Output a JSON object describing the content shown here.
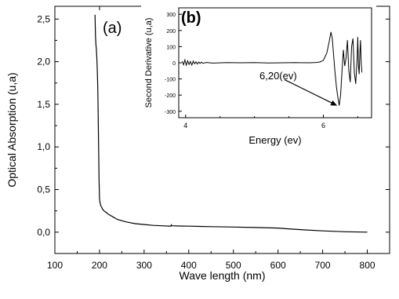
{
  "chart_data": [
    {
      "panel_label": "(a)",
      "type": "line",
      "xlabel": "Wave length  (nm)",
      "ylabel": "Optical Absorption (u,a)",
      "xlim": [
        100,
        850
      ],
      "ylim": [
        -0.25,
        2.65
      ],
      "xticks": [
        100,
        200,
        300,
        400,
        500,
        600,
        700,
        800
      ],
      "xtick_labels": [
        "100",
        "200",
        "300",
        "400",
        "500",
        "600",
        "700",
        "800"
      ],
      "yticks": [
        0.0,
        0.5,
        1.0,
        1.5,
        2.0,
        2.5
      ],
      "ytick_labels": [
        "0,0",
        "0,5",
        "1,0",
        "1,5",
        "2,0",
        "2,5"
      ],
      "series": [
        {
          "color": "#000000",
          "x": [
            190,
            191,
            192,
            193,
            194,
            195,
            196,
            197,
            198,
            199,
            200,
            201,
            202,
            203,
            204,
            205,
            207,
            210,
            215,
            220,
            230,
            240,
            260,
            280,
            300,
            320,
            340,
            360,
            361,
            362,
            380,
            400,
            450,
            500,
            550,
            600,
            620,
            650,
            700,
            750,
            800
          ],
          "y": [
            2.55,
            2.3,
            2.2,
            2.15,
            2.05,
            1.9,
            1.7,
            1.4,
            1.0,
            0.6,
            0.4,
            0.35,
            0.33,
            0.31,
            0.3,
            0.29,
            0.27,
            0.25,
            0.23,
            0.21,
            0.18,
            0.15,
            0.12,
            0.1,
            0.09,
            0.08,
            0.075,
            0.07,
            0.085,
            0.075,
            0.072,
            0.07,
            0.065,
            0.06,
            0.055,
            0.048,
            0.04,
            0.03,
            0.015,
            0.005,
            0.0
          ]
        }
      ],
      "grid": false
    },
    {
      "panel_label": "(b)",
      "type": "line",
      "xlabel": "Energy (ev)",
      "ylabel": "Second Derivative (u,a)",
      "xlim": [
        3.9,
        6.7
      ],
      "ylim": [
        -340,
        340
      ],
      "xticks": [
        4,
        6
      ],
      "xtick_labels": [
        "4",
        "6"
      ],
      "yticks": [
        -300,
        -200,
        -100,
        0,
        100,
        200,
        300
      ],
      "ytick_labels": [
        "-300",
        "-200",
        "-100",
        "0",
        "100",
        "200",
        "300"
      ],
      "annotation": {
        "text": "6,20(ev)",
        "x": 6.2,
        "y": -265
      },
      "series": [
        {
          "color": "#000000",
          "x": [
            3.95,
            3.97,
            3.99,
            4.01,
            4.03,
            4.05,
            4.07,
            4.09,
            4.11,
            4.13,
            4.15,
            4.17,
            4.19,
            4.21,
            4.23,
            4.25,
            4.3,
            4.4,
            4.6,
            4.8,
            5.0,
            5.2,
            5.4,
            5.6,
            5.8,
            5.9,
            5.95,
            6.0,
            6.05,
            6.08,
            6.11,
            6.13,
            6.15,
            6.17,
            6.19,
            6.21,
            6.23,
            6.25,
            6.27,
            6.29,
            6.31,
            6.33,
            6.35,
            6.37,
            6.39,
            6.41,
            6.43,
            6.45,
            6.47,
            6.49,
            6.5,
            6.51,
            6.52,
            6.53,
            6.54,
            6.55,
            6.56
          ],
          "y": [
            10,
            -12,
            18,
            -15,
            12,
            -10,
            8,
            -14,
            10,
            -6,
            6,
            -8,
            5,
            -4,
            4,
            -3,
            2,
            -2,
            1,
            0,
            1,
            -1,
            0,
            1,
            0,
            2,
            5,
            15,
            60,
            120,
            190,
            150,
            40,
            -60,
            -150,
            -210,
            -265,
            -200,
            -60,
            80,
            -20,
            30,
            140,
            -50,
            -120,
            100,
            150,
            -60,
            -130,
            30,
            160,
            -20,
            -70,
            60,
            140,
            0,
            -60
          ]
        }
      ],
      "grid": false
    }
  ]
}
